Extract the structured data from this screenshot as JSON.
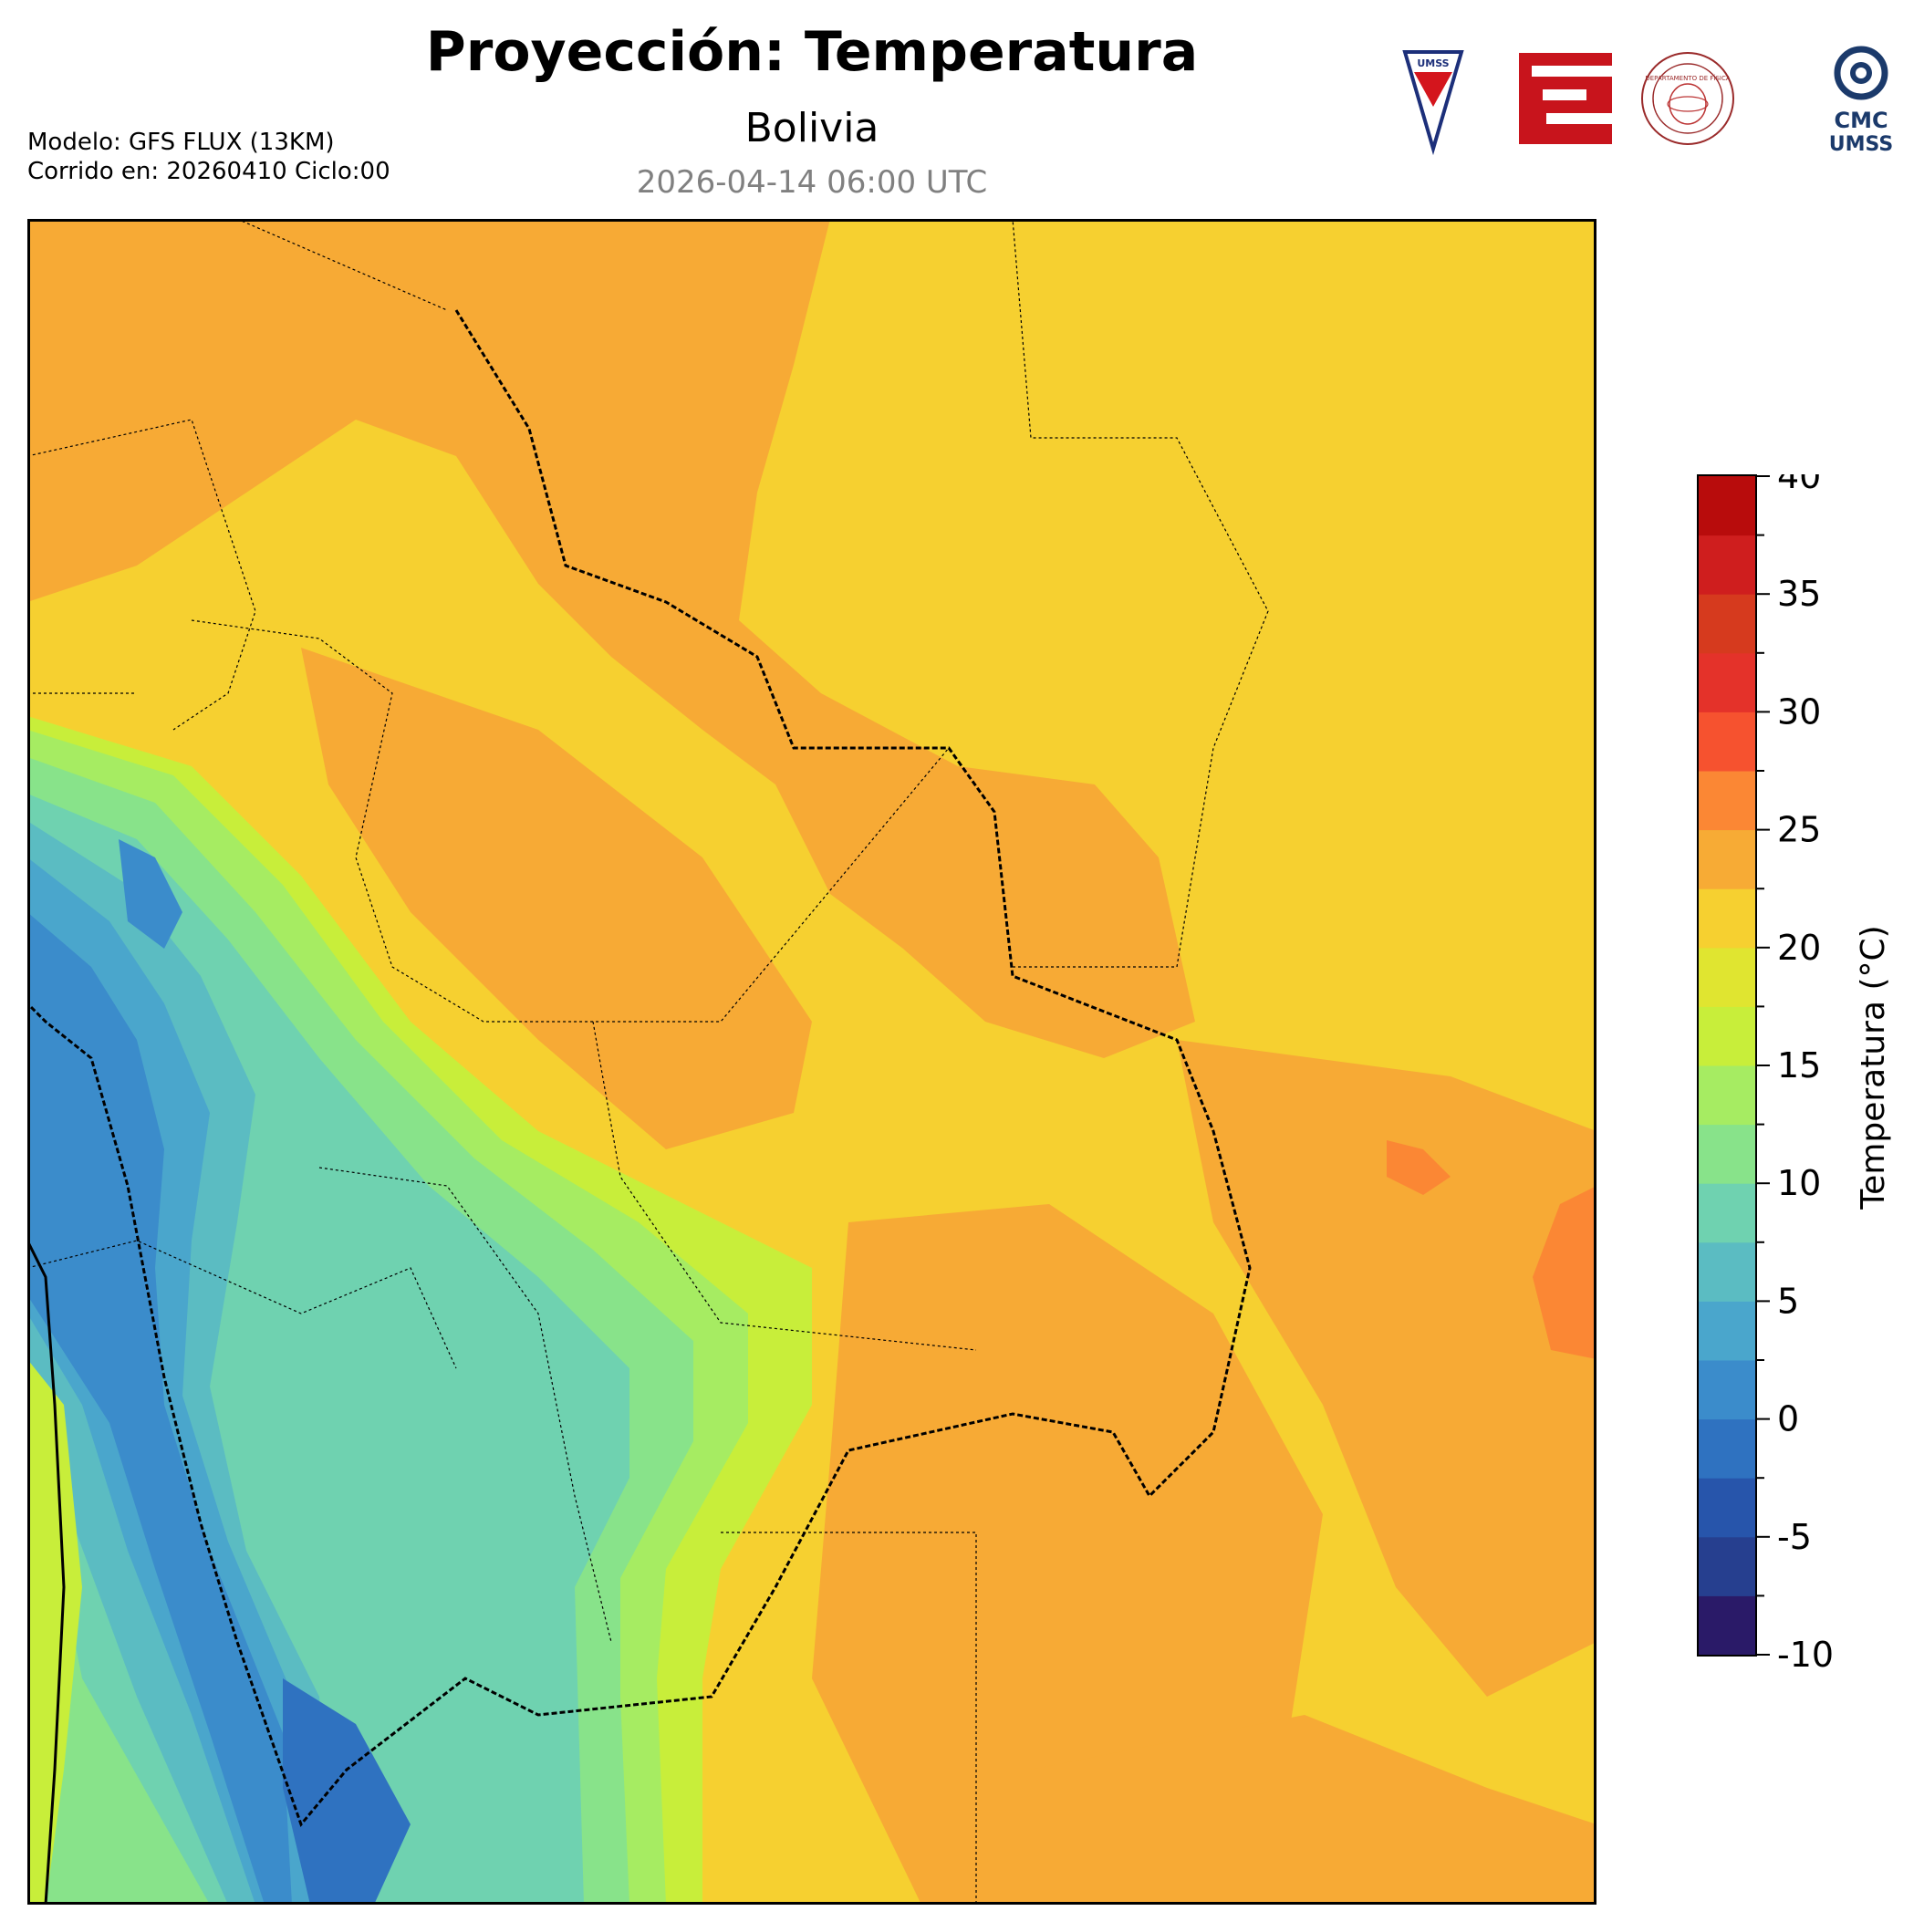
{
  "header": {
    "title": "Proyección: Temperatura",
    "subtitle": "Bolivia",
    "datetime": "2026-04-14 06:00 UTC",
    "model_line": "Modelo: GFS FLUX (13KM)",
    "run_line": "Corrido en: 20260410 Ciclo:00"
  },
  "logos": {
    "umss_text": "UMSS",
    "fisica_text": "DEPARTAMENTO DE FÍSICA",
    "cmc_line1": "CMC",
    "cmc_line2": "UMSS"
  },
  "colorbar": {
    "label": "Temperatura (°C)",
    "ticks": [
      "40",
      "35",
      "30",
      "25",
      "20",
      "15",
      "10",
      "5",
      "0",
      "-5",
      "-10"
    ],
    "levels": [
      -10,
      -7.5,
      -5,
      -2.5,
      0,
      2.5,
      5,
      7.5,
      10,
      12.5,
      15,
      17.5,
      20,
      22.5,
      25,
      27.5,
      30,
      32.5,
      35,
      37.5,
      40
    ],
    "colors": [
      "#2a1a68",
      "#263f8f",
      "#2755ab",
      "#2f72c0",
      "#3b8ccb",
      "#4aa6cc",
      "#5bbcc2",
      "#6fd2b0",
      "#88e38a",
      "#a6ec62",
      "#c8ee3a",
      "#e0e530",
      "#f6d030",
      "#f7ab35",
      "#fb8734",
      "#f6522f",
      "#e4322a",
      "#d63a1e",
      "#cf1e1e",
      "#b80c0c"
    ]
  },
  "map": {
    "colors": {
      "warm": "#f7aa35",
      "mild": "#f6d030",
      "cold_light": "#a6ec62",
      "cold_mid": "#6fd2b0",
      "cold_deep": "#4aa6cc",
      "freezing": "#2f72c0"
    }
  }
}
